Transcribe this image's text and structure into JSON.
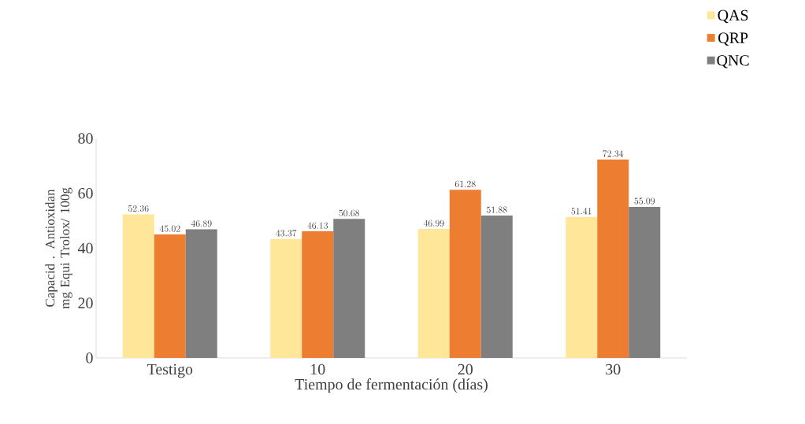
{
  "chart_data": {
    "type": "bar",
    "xlabel": "Tiempo de fermentación  (días)",
    "ylabel": "Capacid . Antioxidan mg Equi Trolox/ 100g",
    "categories": [
      "Testigo",
      "10",
      "20",
      "30"
    ],
    "series": [
      {
        "name": "QAS",
        "color": "#ffe699",
        "values": [
          52.36,
          43.37,
          46.99,
          51.41
        ]
      },
      {
        "name": "QRP",
        "color": "#ed7d31",
        "values": [
          45.02,
          46.13,
          61.28,
          72.34
        ]
      },
      {
        "name": "QNC",
        "color": "#7f7f7f",
        "values": [
          46.89,
          50.68,
          51.88,
          55.09
        ]
      }
    ],
    "ylim": [
      0,
      80
    ],
    "yticks": [
      0,
      20,
      40,
      60,
      80
    ],
    "data_labels": true,
    "legend": "top right",
    "grid": false
  }
}
